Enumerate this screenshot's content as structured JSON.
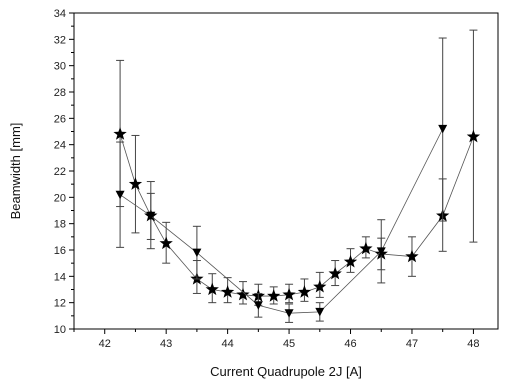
{
  "chart_data": {
    "type": "scatter",
    "title": "",
    "xlabel": "Current Quadrupole 2J [A]",
    "ylabel": "Beamwidth [mm]",
    "xlim": [
      41.5,
      48.4
    ],
    "ylim": [
      10,
      34
    ],
    "x_ticks": [
      42,
      43,
      44,
      45,
      46,
      47,
      48
    ],
    "y_ticks": [
      10,
      12,
      14,
      16,
      18,
      20,
      22,
      24,
      26,
      28,
      30,
      32,
      34
    ],
    "grid": false,
    "legend": "none",
    "series": [
      {
        "marker": "star",
        "color": "#000000",
        "line": true,
        "points": [
          {
            "x": 42.25,
            "y": 24.8,
            "err_low": 19.3,
            "err_high": 30.4
          },
          {
            "x": 42.5,
            "y": 21.0,
            "err_low": 17.3,
            "err_high": 24.7
          },
          {
            "x": 42.75,
            "y": 18.6,
            "err_low": 16.1,
            "err_high": 21.2
          },
          {
            "x": 43.0,
            "y": 16.5,
            "err_low": 15.0,
            "err_high": 18.1
          },
          {
            "x": 43.5,
            "y": 13.8,
            "err_low": 12.7,
            "err_high": 15.2
          },
          {
            "x": 43.75,
            "y": 13.0,
            "err_low": 12.0,
            "err_high": 14.2
          },
          {
            "x": 44.0,
            "y": 12.8,
            "err_low": 12.0,
            "err_high": 13.9
          },
          {
            "x": 44.25,
            "y": 12.6,
            "err_low": 11.9,
            "err_high": 13.6
          },
          {
            "x": 44.5,
            "y": 12.5,
            "err_low": 11.8,
            "err_high": 13.4
          },
          {
            "x": 44.75,
            "y": 12.5,
            "err_low": 11.9,
            "err_high": 13.2
          },
          {
            "x": 45.0,
            "y": 12.6,
            "err_low": 12.0,
            "err_high": 13.4
          },
          {
            "x": 45.25,
            "y": 12.8,
            "err_low": 12.1,
            "err_high": 13.8
          },
          {
            "x": 45.5,
            "y": 13.2,
            "err_low": 12.4,
            "err_high": 14.3
          },
          {
            "x": 45.75,
            "y": 14.2,
            "err_low": 13.3,
            "err_high": 15.2
          },
          {
            "x": 46.0,
            "y": 15.1,
            "err_low": 14.3,
            "err_high": 16.1
          },
          {
            "x": 46.25,
            "y": 16.1,
            "err_low": 15.4,
            "err_high": 17.0
          },
          {
            "x": 46.5,
            "y": 15.7,
            "err_low": 14.5,
            "err_high": 16.9
          },
          {
            "x": 47.0,
            "y": 15.5,
            "err_low": 14.0,
            "err_high": 17.0
          },
          {
            "x": 47.5,
            "y": 18.6,
            "err_low": 15.9,
            "err_high": 21.4
          },
          {
            "x": 48.0,
            "y": 24.6,
            "err_low": 16.6,
            "err_high": 32.7
          }
        ]
      },
      {
        "marker": "triangle-down",
        "color": "#000000",
        "line": true,
        "points": [
          {
            "x": 42.25,
            "y": 20.2,
            "err_low": 16.2,
            "err_high": 24.2
          },
          {
            "x": 42.75,
            "y": 18.6,
            "err_low": 16.8,
            "err_high": 20.3
          },
          {
            "x": 43.5,
            "y": 15.8,
            "err_low": 13.8,
            "err_high": 17.8
          },
          {
            "x": 44.5,
            "y": 11.8,
            "err_low": 10.9,
            "err_high": 12.7
          },
          {
            "x": 45.0,
            "y": 11.2,
            "err_low": 10.5,
            "err_high": 11.9
          },
          {
            "x": 45.5,
            "y": 11.3,
            "err_low": 10.6,
            "err_high": 12.0
          },
          {
            "x": 46.5,
            "y": 15.9,
            "err_low": 13.5,
            "err_high": 18.3
          },
          {
            "x": 47.5,
            "y": 25.2,
            "err_low": 18.2,
            "err_high": 32.1
          }
        ]
      }
    ]
  }
}
